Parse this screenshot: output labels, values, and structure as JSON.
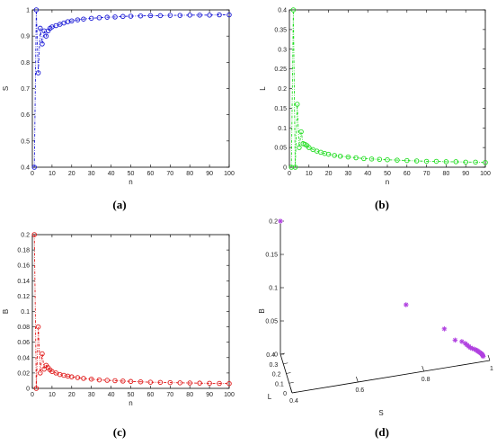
{
  "chart_data": [
    {
      "panel": "(a)",
      "type": "line",
      "xlabel": "n",
      "ylabel": "S",
      "xlim": [
        0,
        100
      ],
      "ylim": [
        0.4,
        1
      ],
      "xticks": [
        0,
        10,
        20,
        30,
        40,
        50,
        60,
        70,
        80,
        90,
        100
      ],
      "yticks": [
        0.4,
        0.5,
        0.6,
        0.7,
        0.8,
        0.9,
        1
      ],
      "color": "#1a1ad6",
      "series": [
        {
          "x": [
            1,
            2,
            3,
            4,
            5,
            6,
            7,
            8,
            9,
            10,
            12,
            14,
            16,
            18,
            20,
            23,
            26,
            30,
            34,
            38,
            42,
            46,
            50,
            55,
            60,
            65,
            70,
            75,
            80,
            85,
            90,
            95,
            100
          ],
          "values": [
            0.4,
            1.0,
            0.76,
            0.93,
            0.87,
            0.92,
            0.9,
            0.92,
            0.93,
            0.935,
            0.94,
            0.945,
            0.95,
            0.955,
            0.958,
            0.962,
            0.965,
            0.968,
            0.97,
            0.972,
            0.973,
            0.975,
            0.976,
            0.977,
            0.978,
            0.978,
            0.979,
            0.979,
            0.98,
            0.98,
            0.98,
            0.981,
            0.981
          ]
        }
      ]
    },
    {
      "panel": "(b)",
      "type": "line",
      "xlabel": "n",
      "ylabel": "L",
      "xlim": [
        0,
        100
      ],
      "ylim": [
        0,
        0.4
      ],
      "xticks": [
        0,
        10,
        20,
        30,
        40,
        50,
        60,
        70,
        80,
        90,
        100
      ],
      "yticks": [
        0,
        0.05,
        0.1,
        0.15,
        0.2,
        0.25,
        0.3,
        0.35,
        0.4
      ],
      "color": "#22dd22",
      "series": [
        {
          "x": [
            1,
            2,
            3,
            4,
            5,
            6,
            7,
            8,
            9,
            10,
            12,
            14,
            16,
            18,
            20,
            23,
            26,
            30,
            34,
            38,
            42,
            46,
            50,
            55,
            60,
            65,
            70,
            75,
            80,
            85,
            90,
            95,
            100
          ],
          "values": [
            0.0,
            0.4,
            0.0,
            0.16,
            0.05,
            0.09,
            0.06,
            0.058,
            0.055,
            0.05,
            0.045,
            0.041,
            0.038,
            0.035,
            0.033,
            0.03,
            0.028,
            0.026,
            0.024,
            0.022,
            0.021,
            0.02,
            0.019,
            0.018,
            0.017,
            0.016,
            0.015,
            0.015,
            0.014,
            0.014,
            0.013,
            0.013,
            0.012
          ]
        }
      ]
    },
    {
      "panel": "(c)",
      "type": "line",
      "xlabel": "n",
      "ylabel": "B",
      "xlim": [
        0,
        100
      ],
      "ylim": [
        0,
        0.2
      ],
      "xticks": [
        0,
        10,
        20,
        30,
        40,
        50,
        60,
        70,
        80,
        90,
        100
      ],
      "yticks": [
        0,
        0.02,
        0.04,
        0.06,
        0.08,
        0.1,
        0.12,
        0.14,
        0.16,
        0.18,
        0.2
      ],
      "color": "#e01818",
      "series": [
        {
          "x": [
            1,
            2,
            3,
            4,
            5,
            6,
            7,
            8,
            9,
            10,
            12,
            14,
            16,
            18,
            20,
            23,
            26,
            30,
            34,
            38,
            42,
            46,
            50,
            55,
            60,
            65,
            70,
            75,
            80,
            85,
            90,
            95,
            100
          ],
          "values": [
            0.2,
            0.0,
            0.08,
            0.02,
            0.045,
            0.025,
            0.03,
            0.027,
            0.024,
            0.022,
            0.02,
            0.018,
            0.017,
            0.016,
            0.015,
            0.014,
            0.013,
            0.012,
            0.011,
            0.0105,
            0.01,
            0.0095,
            0.009,
            0.0085,
            0.008,
            0.0078,
            0.0075,
            0.0072,
            0.007,
            0.0068,
            0.0066,
            0.0064,
            0.0062
          ]
        }
      ]
    },
    {
      "panel": "(d)",
      "type": "scatter",
      "xlabel": "S",
      "ylabel": "L",
      "zlabel": "B",
      "xlim": [
        0.4,
        1
      ],
      "ylim": [
        0,
        0.4
      ],
      "zlim": [
        0,
        0.2
      ],
      "xticks": [
        "0.4",
        "0.6",
        "0.8",
        "1"
      ],
      "yticks": [
        "0",
        "0.1",
        "0.2",
        "0.3",
        "0.4"
      ],
      "zticks": [
        "0",
        "0.05",
        "0.1",
        "0.15",
        "0.2"
      ],
      "color": "#b040e0",
      "points": [
        {
          "S": 0.4,
          "L": 0.4,
          "B": 0.2
        },
        {
          "S": 0.76,
          "L": 0.16,
          "B": 0.08
        },
        {
          "S": 0.87,
          "L": 0.09,
          "B": 0.045
        },
        {
          "S": 0.9,
          "L": 0.06,
          "B": 0.03
        },
        {
          "S": 0.92,
          "L": 0.055,
          "B": 0.027
        },
        {
          "S": 0.93,
          "L": 0.05,
          "B": 0.024
        },
        {
          "S": 0.935,
          "L": 0.045,
          "B": 0.022
        },
        {
          "S": 0.94,
          "L": 0.041,
          "B": 0.02
        },
        {
          "S": 0.945,
          "L": 0.038,
          "B": 0.018
        },
        {
          "S": 0.95,
          "L": 0.035,
          "B": 0.017
        },
        {
          "S": 0.955,
          "L": 0.033,
          "B": 0.016
        },
        {
          "S": 0.96,
          "L": 0.03,
          "B": 0.015
        },
        {
          "S": 0.963,
          "L": 0.028,
          "B": 0.014
        },
        {
          "S": 0.966,
          "L": 0.026,
          "B": 0.013
        },
        {
          "S": 0.969,
          "L": 0.024,
          "B": 0.012
        },
        {
          "S": 0.972,
          "L": 0.022,
          "B": 0.011
        },
        {
          "S": 0.975,
          "L": 0.02,
          "B": 0.01
        },
        {
          "S": 0.977,
          "L": 0.018,
          "B": 0.009
        },
        {
          "S": 0.979,
          "L": 0.016,
          "B": 0.008
        },
        {
          "S": 0.98,
          "L": 0.014,
          "B": 0.007
        },
        {
          "S": 0.981,
          "L": 0.012,
          "B": 0.006
        }
      ]
    }
  ]
}
